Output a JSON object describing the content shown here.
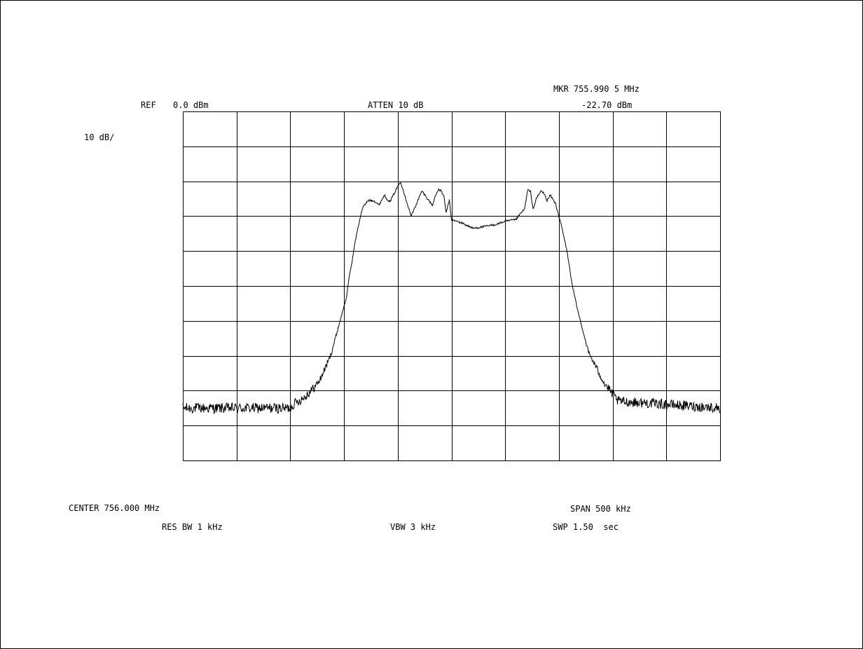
{
  "header": {
    "ref_label": "REF",
    "ref_value": "0.0 dBm",
    "atten": "ATTEN 10 dB",
    "marker_freq": "MKR 755.990 5 MHz",
    "marker_level": "-22.70 dBm",
    "scale": "10 dB/"
  },
  "footer": {
    "center": "CENTER 756.000 MHz",
    "span": "SPAN 500 kHz",
    "res_bw": "RES BW 1 kHz",
    "vbw": "VBW 3 kHz",
    "sweep": "SWP 1.50  sec"
  },
  "colors": {
    "trace": "#000000",
    "grid": "#000000",
    "background": "#ffffff"
  },
  "chart_data": {
    "type": "line",
    "x_unit": "MHz",
    "y_unit": "dBm",
    "xlim": [
      755.75,
      756.25
    ],
    "ylim": [
      -100,
      0
    ],
    "x_divisions": 10,
    "y_divisions": 10,
    "grid": true,
    "center_freq": 756.0,
    "span": 0.5,
    "ref_level": 0.0,
    "scale_per_div": 10,
    "noise_floor": -85,
    "noise_ripple": 1.5,
    "marker": {
      "x": 755.9905,
      "y": -22.7
    },
    "series": [
      {
        "x": [
          755.75,
          755.85,
          755.8525,
          755.8625,
          755.8725,
          755.8775,
          755.8825,
          755.8875,
          755.9025,
          755.905,
          755.9075,
          755.91,
          755.9125,
          755.915,
          755.9175,
          755.9225,
          755.9275,
          755.9325,
          755.9375,
          755.9425,
          755.9525,
          755.9625,
          755.9725,
          755.9825,
          755.985,
          755.988,
          755.9905,
          755.993,
          755.995,
          755.998,
          756.0,
          756.01,
          756.02,
          756.03,
          756.04,
          756.05,
          756.06,
          756.065,
          756.068,
          756.071,
          756.0735,
          756.076,
          756.079,
          756.081,
          756.0835,
          756.086,
          756.089,
          756.092,
          756.097,
          756.1025,
          756.1075,
          756.1125,
          756.1175,
          756.1225,
          756.1275,
          756.1425,
          756.155,
          756.25
        ],
        "y": [
          -85,
          -85,
          -84,
          -82,
          -79,
          -77,
          -73.5,
          -70,
          -53,
          -47,
          -43,
          -38,
          -34,
          -30.5,
          -27.5,
          -25.5,
          -25.5,
          -26.8,
          -24,
          -26,
          -20,
          -30,
          -22.8,
          -27,
          -24,
          -22.5,
          -22.7,
          -24.5,
          -29,
          -25.5,
          -31,
          -32,
          -33.5,
          -33,
          -32.5,
          -31.5,
          -31,
          -29,
          -28,
          -22.5,
          -23,
          -28,
          -25,
          -24,
          -22.7,
          -23.5,
          -25.5,
          -24,
          -26.5,
          -33,
          -40,
          -50,
          -57,
          -63,
          -69,
          -78,
          -83,
          -85
        ]
      }
    ]
  }
}
